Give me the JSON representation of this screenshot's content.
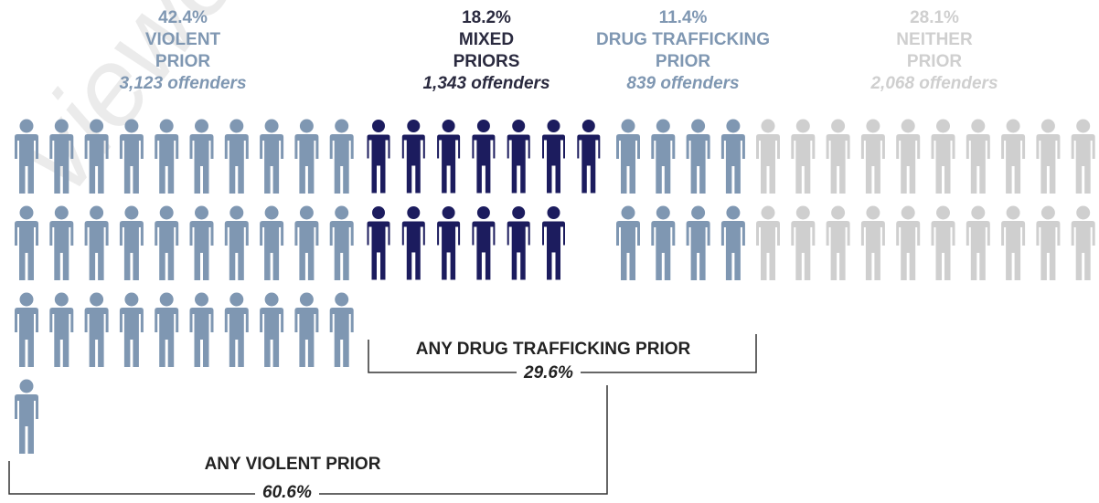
{
  "chart_data": {
    "type": "pictograph",
    "categories": [
      {
        "key": "violent",
        "pct": "42.4%",
        "label_lines": [
          "VIOLENT",
          "PRIOR"
        ],
        "offenders": "3,123 offenders",
        "color": "#7f97b2",
        "header_color": "#7f97b2",
        "icons": 31
      },
      {
        "key": "mixed",
        "pct": "18.2%",
        "label_lines": [
          "MIXED",
          "PRIORS"
        ],
        "offenders": "1,343 offenders",
        "color": "#1c1c5e",
        "header_color": "#2a2a3f",
        "icons": 13
      },
      {
        "key": "drug",
        "pct": "11.4%",
        "label_lines": [
          "DRUG TRAFFICKING",
          "PRIOR"
        ],
        "offenders": "839 offenders",
        "color": "#7f97b2",
        "header_color": "#7f97b2",
        "icons": 8
      },
      {
        "key": "neither",
        "pct": "28.1%",
        "label_lines": [
          "NEITHER",
          "PRIOR"
        ],
        "offenders": "2,068 offenders",
        "color": "#cfcfcf",
        "header_color": "#cfcfcf",
        "icons": 20
      }
    ],
    "brackets": [
      {
        "key": "drug_bracket",
        "label": "ANY DRUG TRAFFICKING PRIOR",
        "pct": "29.6%"
      },
      {
        "key": "violent_bracket",
        "label": "ANY VIOLENT PRIOR",
        "pct": "60.6%"
      }
    ]
  },
  "watermark": "viewed by"
}
